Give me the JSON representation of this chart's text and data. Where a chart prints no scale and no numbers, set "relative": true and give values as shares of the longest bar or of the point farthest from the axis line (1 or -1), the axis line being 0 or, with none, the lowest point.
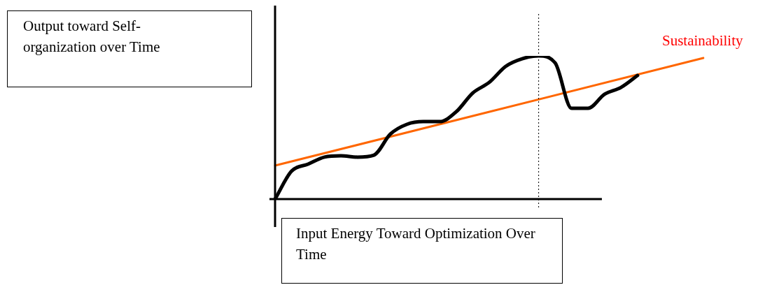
{
  "chart_data": {
    "type": "line",
    "relative": true,
    "xlabel": "Input Energy Toward Optimization Over Time",
    "annotations": [
      "Output toward Self-organization over Time"
    ],
    "categories": [
      null,
      null,
      null,
      null,
      null,
      null,
      null,
      null,
      null,
      null,
      null,
      null,
      null,
      null,
      null,
      null,
      null,
      null,
      null,
      null,
      null,
      null,
      null,
      null,
      null,
      null,
      null
    ],
    "series": [
      {
        "color": "#000000",
        "values": [
          0,
          0.195,
          0.244,
          0.293,
          0.302,
          0.293,
          0.307,
          0.454,
          0.522,
          0.541,
          0.541,
          0.61,
          0.741,
          0.815,
          0.927,
          0.98,
          1.0,
          0.951,
          0.634,
          0.634,
          0.732,
          0.78,
          0.863,
          null,
          null,
          null,
          null
        ]
      },
      {
        "name": "Sustainability",
        "color": "#ff6600",
        "values": [
          0.234,
          null,
          null,
          null,
          null,
          null,
          null,
          null,
          null,
          null,
          null,
          null,
          null,
          null,
          null,
          null,
          null,
          null,
          null,
          null,
          null,
          null,
          null,
          null,
          null,
          null,
          0.985
        ]
      }
    ],
    "grid": false,
    "legend": false,
    "marker": "none",
    "line_style": "solid"
  }
}
